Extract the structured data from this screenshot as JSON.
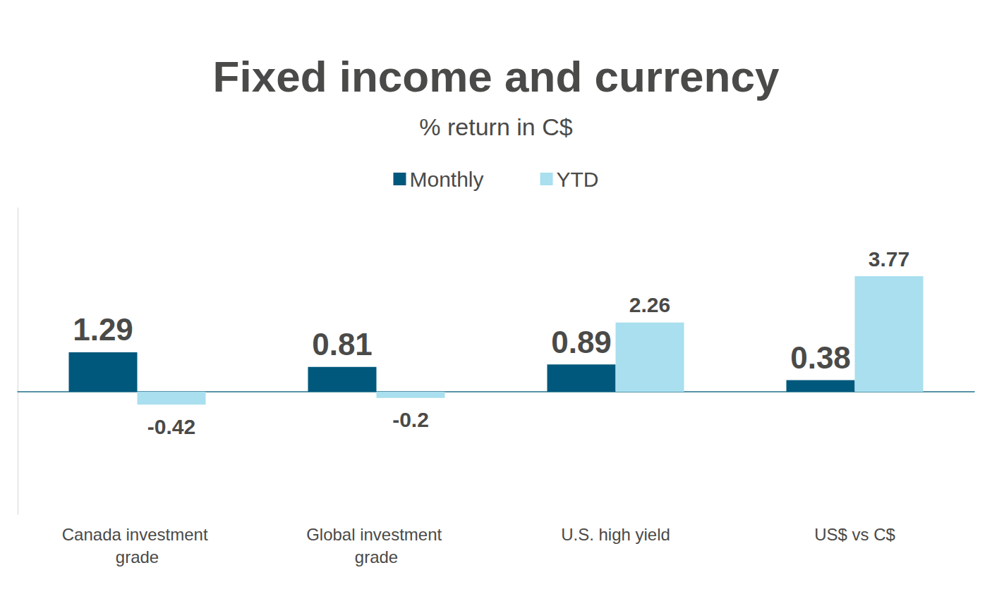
{
  "chart_data": {
    "type": "bar",
    "title": "Fixed income and currency",
    "subtitle": "% return in C$",
    "categories": [
      "Canada investment grade",
      "Global investment grade",
      "U.S. high yield",
      "US$ vs C$"
    ],
    "series": [
      {
        "name": "Monthly",
        "color": "#00587c",
        "values": [
          1.29,
          0.81,
          0.89,
          0.38
        ]
      },
      {
        "name": "YTD",
        "color": "#a9dfef",
        "values": [
          -0.42,
          -0.2,
          2.26,
          3.77
        ]
      }
    ],
    "ylim": [
      -4,
      6
    ],
    "grid": false,
    "legend": "top",
    "data_labels": true,
    "tick_labels": "x"
  }
}
